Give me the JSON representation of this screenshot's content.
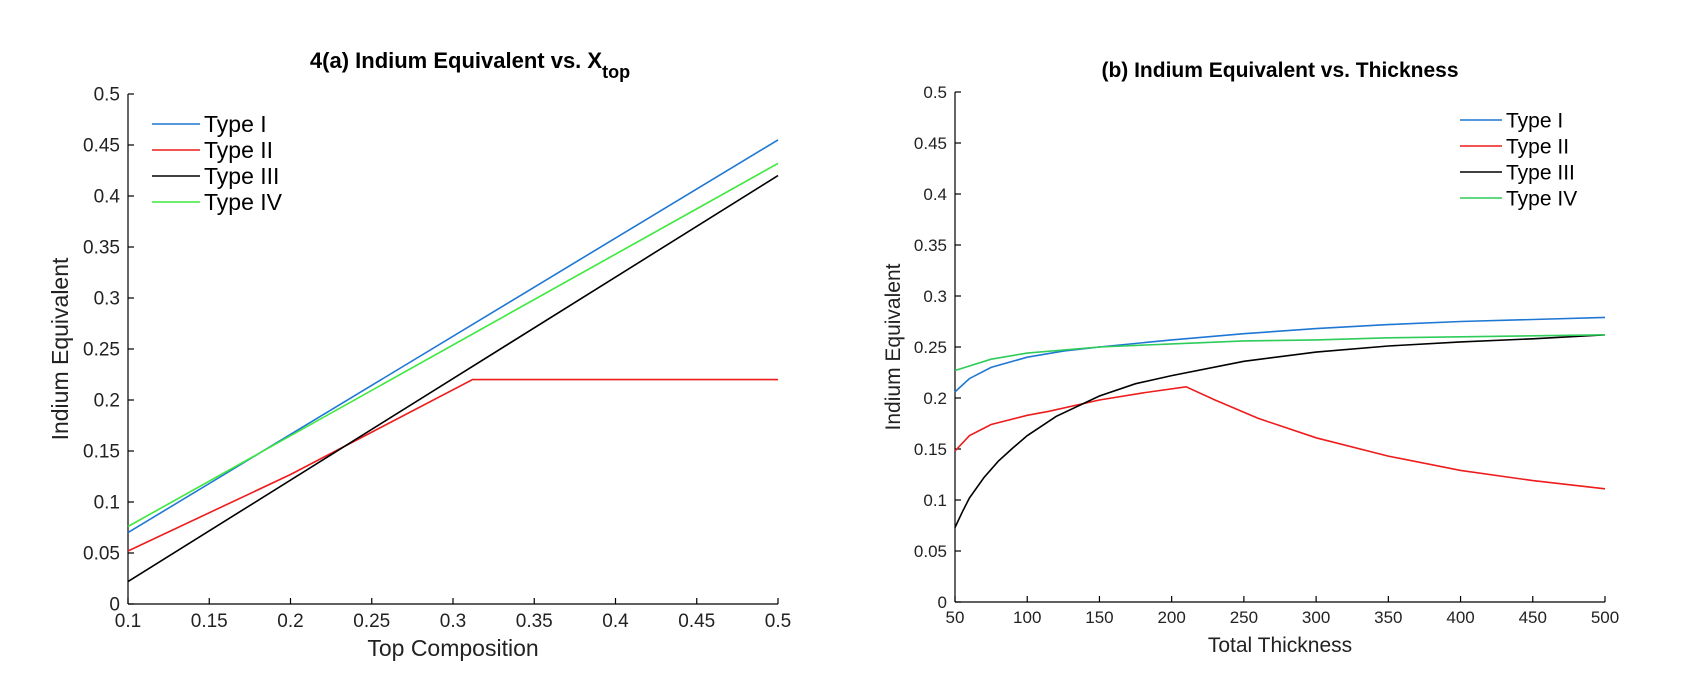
{
  "chart_data": [
    {
      "type": "line",
      "title": "4(a) Indium Equivalent vs. X",
      "title_subscript": "top",
      "xlabel": "Top Composition",
      "ylabel": "Indium Equivalent",
      "xlim": [
        0.1,
        0.5
      ],
      "ylim": [
        0,
        0.5
      ],
      "xticks": [
        0.1,
        0.15,
        0.2,
        0.25,
        0.3,
        0.35,
        0.4,
        0.45,
        0.5
      ],
      "xtick_labels": [
        "0.1",
        "0.15",
        "0.2",
        "0.25",
        "0.3",
        "0.35",
        "0.4",
        "0.45",
        "0.5"
      ],
      "yticks": [
        0,
        0.05,
        0.1,
        0.15,
        0.2,
        0.25,
        0.3,
        0.35,
        0.4,
        0.45,
        0.5
      ],
      "ytick_labels": [
        "0",
        "0.05",
        "0.1",
        "0.15",
        "0.2",
        "0.25",
        "0.3",
        "0.35",
        "0.4",
        "0.45",
        "0.5"
      ],
      "grid": false,
      "legend_position": "top-left",
      "series": [
        {
          "name": "Type I",
          "color": "#1f77d4",
          "x": [
            0.1,
            0.5
          ],
          "y": [
            0.07,
            0.455
          ]
        },
        {
          "name": "Type II",
          "color": "#ee1c1c",
          "x": [
            0.1,
            0.2,
            0.312,
            0.5
          ],
          "y": [
            0.052,
            0.127,
            0.22,
            0.22
          ]
        },
        {
          "name": "Type III",
          "color": "#000000",
          "x": [
            0.1,
            0.5
          ],
          "y": [
            0.022,
            0.42
          ]
        },
        {
          "name": "Type IV",
          "color": "#3ee83e",
          "x": [
            0.1,
            0.5
          ],
          "y": [
            0.076,
            0.432
          ]
        }
      ]
    },
    {
      "type": "line",
      "title": "(b) Indium Equivalent vs. Thickness",
      "xlabel": "Total Thickness",
      "ylabel": "Indium Equivalent",
      "xlim": [
        50,
        500
      ],
      "ylim": [
        0,
        0.5
      ],
      "xticks": [
        50,
        100,
        150,
        200,
        250,
        300,
        350,
        400,
        450,
        500
      ],
      "xtick_labels": [
        "50",
        "100",
        "150",
        "200",
        "250",
        "300",
        "350",
        "400",
        "450",
        "500"
      ],
      "yticks": [
        0,
        0.05,
        0.1,
        0.15,
        0.2,
        0.25,
        0.3,
        0.35,
        0.4,
        0.45,
        0.5
      ],
      "ytick_labels": [
        "0",
        "0.05",
        "0.1",
        "0.15",
        "0.2",
        "0.25",
        "0.3",
        "0.35",
        "0.4",
        "0.45",
        "0.5"
      ],
      "grid": false,
      "legend_position": "top-right",
      "series": [
        {
          "name": "Type I",
          "color": "#1f77d4",
          "x": [
            50,
            60,
            75,
            100,
            125,
            150,
            200,
            250,
            300,
            350,
            400,
            450,
            500
          ],
          "y": [
            0.206,
            0.219,
            0.23,
            0.24,
            0.246,
            0.25,
            0.257,
            0.263,
            0.268,
            0.272,
            0.275,
            0.277,
            0.279
          ]
        },
        {
          "name": "Type II",
          "color": "#ee1c1c",
          "x": [
            50,
            60,
            75,
            100,
            115,
            150,
            180,
            210,
            230,
            260,
            300,
            350,
            400,
            450,
            500
          ],
          "y": [
            0.148,
            0.163,
            0.174,
            0.183,
            0.187,
            0.198,
            0.205,
            0.211,
            0.198,
            0.18,
            0.161,
            0.143,
            0.129,
            0.119,
            0.111
          ]
        },
        {
          "name": "Type III",
          "color": "#000000",
          "x": [
            50,
            55,
            60,
            70,
            80,
            90,
            100,
            120,
            150,
            175,
            200,
            250,
            300,
            350,
            400,
            450,
            500
          ],
          "y": [
            0.073,
            0.088,
            0.102,
            0.122,
            0.138,
            0.151,
            0.163,
            0.182,
            0.202,
            0.214,
            0.222,
            0.236,
            0.245,
            0.251,
            0.255,
            0.258,
            0.262
          ]
        },
        {
          "name": "Type IV",
          "color": "#2ecc5a",
          "x": [
            50,
            75,
            100,
            150,
            200,
            250,
            300,
            350,
            400,
            450,
            500
          ],
          "y": [
            0.227,
            0.238,
            0.244,
            0.25,
            0.253,
            0.256,
            0.257,
            0.259,
            0.26,
            0.261,
            0.262
          ]
        }
      ]
    }
  ]
}
